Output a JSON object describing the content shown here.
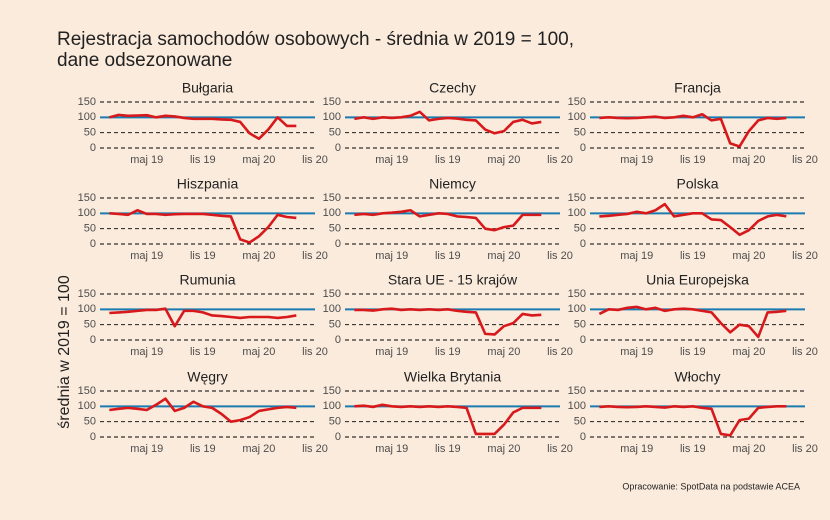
{
  "title": [
    "Rejestracja samochodów osobowych - średnia w 2019 = 100,",
    "dane odsezonowane"
  ],
  "y_label": "średnia w 2019 = 100",
  "caption": "Opracowanie: SpotData na podstawie ACEA",
  "chart_data": [
    {
      "type": "line",
      "title": "Bułgaria",
      "x": [
        0,
        1,
        2,
        3,
        4,
        5,
        6,
        7,
        8,
        9,
        10,
        11,
        12,
        13,
        14,
        15,
        16,
        17,
        18,
        19,
        20
      ],
      "values": [
        100,
        108,
        105,
        106,
        107,
        100,
        105,
        103,
        98,
        95,
        95,
        95,
        93,
        92,
        85,
        48,
        30,
        60,
        100,
        72,
        72
      ],
      "color": "#d7191c",
      "reference_line": {
        "value": 100,
        "color": "#1b7bb0"
      },
      "xlim": [
        -1,
        22
      ],
      "xticks": [
        {
          "value": 4,
          "label": "maj 19"
        },
        {
          "value": 10,
          "label": "lis 19"
        },
        {
          "value": 16,
          "label": "maj 20"
        },
        {
          "value": 22,
          "label": "lis 20"
        }
      ],
      "ylim": [
        0,
        150
      ],
      "yticks": [
        0,
        50,
        100,
        150
      ],
      "grid": true
    },
    {
      "type": "line",
      "title": "Czechy",
      "x": [
        0,
        1,
        2,
        3,
        4,
        5,
        6,
        7,
        8,
        9,
        10,
        11,
        12,
        13,
        14,
        15,
        16,
        17,
        18,
        19,
        20
      ],
      "values": [
        95,
        100,
        95,
        100,
        98,
        100,
        105,
        118,
        90,
        95,
        98,
        96,
        92,
        90,
        60,
        48,
        55,
        85,
        92,
        80,
        85
      ],
      "color": "#d7191c",
      "reference_line": {
        "value": 100,
        "color": "#1b7bb0"
      },
      "xlim": [
        -1,
        22
      ],
      "xticks": [
        {
          "value": 4,
          "label": "maj 19"
        },
        {
          "value": 10,
          "label": "lis 19"
        },
        {
          "value": 16,
          "label": "maj 20"
        },
        {
          "value": 22,
          "label": "lis 20"
        }
      ],
      "ylim": [
        0,
        150
      ],
      "yticks": [
        0,
        50,
        100,
        150
      ],
      "grid": true
    },
    {
      "type": "line",
      "title": "Francja",
      "x": [
        0,
        1,
        2,
        3,
        4,
        5,
        6,
        7,
        8,
        9,
        10,
        11,
        12,
        13,
        14,
        15,
        16,
        17,
        18,
        19,
        20
      ],
      "values": [
        98,
        100,
        98,
        97,
        98,
        100,
        102,
        98,
        100,
        105,
        100,
        110,
        90,
        95,
        15,
        5,
        55,
        90,
        98,
        95,
        98
      ],
      "color": "#d7191c",
      "reference_line": {
        "value": 100,
        "color": "#1b7bb0"
      },
      "xlim": [
        -1,
        22
      ],
      "xticks": [
        {
          "value": 4,
          "label": "maj 19"
        },
        {
          "value": 10,
          "label": "lis 19"
        },
        {
          "value": 16,
          "label": "maj 20"
        },
        {
          "value": 22,
          "label": "lis 20"
        }
      ],
      "ylim": [
        0,
        150
      ],
      "yticks": [
        0,
        50,
        100,
        150
      ],
      "grid": true
    },
    {
      "type": "line",
      "title": "Hiszpania",
      "x": [
        0,
        1,
        2,
        3,
        4,
        5,
        6,
        7,
        8,
        9,
        10,
        11,
        12,
        13,
        14,
        15,
        16,
        17,
        18,
        19,
        20
      ],
      "values": [
        100,
        98,
        95,
        110,
        98,
        98,
        95,
        97,
        98,
        98,
        98,
        95,
        92,
        90,
        15,
        5,
        25,
        55,
        95,
        88,
        85
      ],
      "color": "#d7191c",
      "reference_line": {
        "value": 100,
        "color": "#1b7bb0"
      },
      "xlim": [
        -1,
        22
      ],
      "xticks": [
        {
          "value": 4,
          "label": "maj 19"
        },
        {
          "value": 10,
          "label": "lis 19"
        },
        {
          "value": 16,
          "label": "maj 20"
        },
        {
          "value": 22,
          "label": "lis 20"
        }
      ],
      "ylim": [
        0,
        150
      ],
      "yticks": [
        0,
        50,
        100,
        150
      ],
      "grid": true
    },
    {
      "type": "line",
      "title": "Niemcy",
      "x": [
        0,
        1,
        2,
        3,
        4,
        5,
        6,
        7,
        8,
        9,
        10,
        11,
        12,
        13,
        14,
        15,
        16,
        17,
        18,
        19,
        20
      ],
      "values": [
        95,
        98,
        95,
        100,
        102,
        105,
        110,
        90,
        95,
        100,
        98,
        90,
        88,
        85,
        50,
        45,
        55,
        60,
        95,
        95,
        95
      ],
      "color": "#d7191c",
      "reference_line": {
        "value": 100,
        "color": "#1b7bb0"
      },
      "xlim": [
        -1,
        22
      ],
      "xticks": [
        {
          "value": 4,
          "label": "maj 19"
        },
        {
          "value": 10,
          "label": "lis 19"
        },
        {
          "value": 16,
          "label": "maj 20"
        },
        {
          "value": 22,
          "label": "lis 20"
        }
      ],
      "ylim": [
        0,
        150
      ],
      "yticks": [
        0,
        50,
        100,
        150
      ],
      "grid": true
    },
    {
      "type": "line",
      "title": "Polska",
      "x": [
        0,
        1,
        2,
        3,
        4,
        5,
        6,
        7,
        8,
        9,
        10,
        11,
        12,
        13,
        14,
        15,
        16,
        17,
        18,
        19,
        20
      ],
      "values": [
        90,
        92,
        95,
        98,
        105,
        100,
        110,
        130,
        90,
        95,
        100,
        100,
        80,
        78,
        55,
        30,
        45,
        75,
        90,
        95,
        90
      ],
      "color": "#d7191c",
      "reference_line": {
        "value": 100,
        "color": "#1b7bb0"
      },
      "xlim": [
        -1,
        22
      ],
      "xticks": [
        {
          "value": 4,
          "label": "maj 19"
        },
        {
          "value": 10,
          "label": "lis 19"
        },
        {
          "value": 16,
          "label": "maj 20"
        },
        {
          "value": 22,
          "label": "lis 20"
        }
      ],
      "ylim": [
        0,
        150
      ],
      "yticks": [
        0,
        50,
        100,
        150
      ],
      "grid": true
    },
    {
      "type": "line",
      "title": "Rumunia",
      "x": [
        0,
        1,
        2,
        3,
        4,
        5,
        6,
        7,
        8,
        9,
        10,
        11,
        12,
        13,
        14,
        15,
        16,
        17,
        18,
        19,
        20
      ],
      "values": [
        88,
        90,
        92,
        95,
        98,
        98,
        102,
        45,
        95,
        95,
        90,
        80,
        78,
        75,
        72,
        75,
        75,
        75,
        72,
        75,
        80
      ],
      "color": "#d7191c",
      "reference_line": {
        "value": 100,
        "color": "#1b7bb0"
      },
      "xlim": [
        -1,
        22
      ],
      "xticks": [
        {
          "value": 4,
          "label": "maj 19"
        },
        {
          "value": 10,
          "label": "lis 19"
        },
        {
          "value": 16,
          "label": "maj 20"
        },
        {
          "value": 22,
          "label": "lis 20"
        }
      ],
      "ylim": [
        0,
        150
      ],
      "yticks": [
        0,
        50,
        100,
        150
      ],
      "grid": true
    },
    {
      "type": "line",
      "title": "Stara UE - 15 krajów",
      "x": [
        0,
        1,
        2,
        3,
        4,
        5,
        6,
        7,
        8,
        9,
        10,
        11,
        12,
        13,
        14,
        15,
        16,
        17,
        18,
        19,
        20
      ],
      "values": [
        98,
        98,
        96,
        100,
        102,
        98,
        100,
        98,
        100,
        98,
        100,
        95,
        92,
        90,
        20,
        18,
        45,
        55,
        85,
        80,
        82
      ],
      "color": "#d7191c",
      "reference_line": {
        "value": 100,
        "color": "#1b7bb0"
      },
      "xlim": [
        -1,
        22
      ],
      "xticks": [
        {
          "value": 4,
          "label": "maj 19"
        },
        {
          "value": 10,
          "label": "lis 19"
        },
        {
          "value": 16,
          "label": "maj 20"
        },
        {
          "value": 22,
          "label": "lis 20"
        }
      ],
      "ylim": [
        0,
        150
      ],
      "yticks": [
        0,
        50,
        100,
        150
      ],
      "grid": true
    },
    {
      "type": "line",
      "title": "Unia Europejska",
      "x": [
        0,
        1,
        2,
        3,
        4,
        5,
        6,
        7,
        8,
        9,
        10,
        11,
        12,
        13,
        14,
        15,
        16,
        17,
        18,
        19,
        20
      ],
      "values": [
        85,
        100,
        98,
        105,
        108,
        100,
        105,
        95,
        100,
        102,
        100,
        95,
        90,
        55,
        25,
        50,
        45,
        10,
        90,
        92,
        95
      ],
      "color": "#d7191c",
      "reference_line": {
        "value": 100,
        "color": "#1b7bb0"
      },
      "xlim": [
        -1,
        22
      ],
      "xticks": [
        {
          "value": 4,
          "label": "maj 19"
        },
        {
          "value": 10,
          "label": "lis 19"
        },
        {
          "value": 16,
          "label": "maj 20"
        },
        {
          "value": 22,
          "label": "lis 20"
        }
      ],
      "ylim": [
        0,
        150
      ],
      "yticks": [
        0,
        50,
        100,
        150
      ],
      "grid": true
    },
    {
      "type": "line",
      "title": "Węgry",
      "x": [
        0,
        1,
        2,
        3,
        4,
        5,
        6,
        7,
        8,
        9,
        10,
        11,
        12,
        13,
        14,
        15,
        16,
        17,
        18,
        19,
        20
      ],
      "values": [
        88,
        92,
        95,
        92,
        88,
        105,
        125,
        85,
        95,
        115,
        100,
        95,
        75,
        50,
        55,
        65,
        85,
        90,
        95,
        98,
        95
      ],
      "color": "#d7191c",
      "reference_line": {
        "value": 100,
        "color": "#1b7bb0"
      },
      "xlim": [
        -1,
        22
      ],
      "xticks": [
        {
          "value": 4,
          "label": "maj 19"
        },
        {
          "value": 10,
          "label": "lis 19"
        },
        {
          "value": 16,
          "label": "maj 20"
        },
        {
          "value": 22,
          "label": "lis 20"
        }
      ],
      "ylim": [
        0,
        150
      ],
      "yticks": [
        0,
        50,
        100,
        150
      ],
      "grid": true
    },
    {
      "type": "line",
      "title": "Wielka Brytania",
      "x": [
        0,
        1,
        2,
        3,
        4,
        5,
        6,
        7,
        8,
        9,
        10,
        11,
        12,
        13,
        14,
        15,
        16,
        17,
        18,
        19,
        20
      ],
      "values": [
        100,
        102,
        98,
        105,
        100,
        98,
        100,
        98,
        100,
        98,
        100,
        98,
        95,
        10,
        10,
        10,
        40,
        80,
        95,
        95,
        95
      ],
      "color": "#d7191c",
      "reference_line": {
        "value": 100,
        "color": "#1b7bb0"
      },
      "xlim": [
        -1,
        22
      ],
      "xticks": [
        {
          "value": 4,
          "label": "maj 19"
        },
        {
          "value": 10,
          "label": "lis 19"
        },
        {
          "value": 16,
          "label": "maj 20"
        },
        {
          "value": 22,
          "label": "lis 20"
        }
      ],
      "ylim": [
        0,
        150
      ],
      "yticks": [
        0,
        50,
        100,
        150
      ],
      "grid": true
    },
    {
      "type": "line",
      "title": "Włochy",
      "x": [
        0,
        1,
        2,
        3,
        4,
        5,
        6,
        7,
        8,
        9,
        10,
        11,
        12,
        13,
        14,
        15,
        16,
        17,
        18,
        19,
        20
      ],
      "values": [
        98,
        100,
        98,
        97,
        98,
        100,
        98,
        96,
        100,
        98,
        100,
        95,
        92,
        10,
        5,
        55,
        60,
        95,
        98,
        100,
        100
      ],
      "color": "#d7191c",
      "reference_line": {
        "value": 100,
        "color": "#1b7bb0"
      },
      "xlim": [
        -1,
        22
      ],
      "xticks": [
        {
          "value": 4,
          "label": "maj 19"
        },
        {
          "value": 10,
          "label": "lis 19"
        },
        {
          "value": 16,
          "label": "maj 20"
        },
        {
          "value": 22,
          "label": "lis 20"
        }
      ],
      "ylim": [
        0,
        150
      ],
      "yticks": [
        0,
        50,
        100,
        150
      ],
      "grid": true
    }
  ]
}
